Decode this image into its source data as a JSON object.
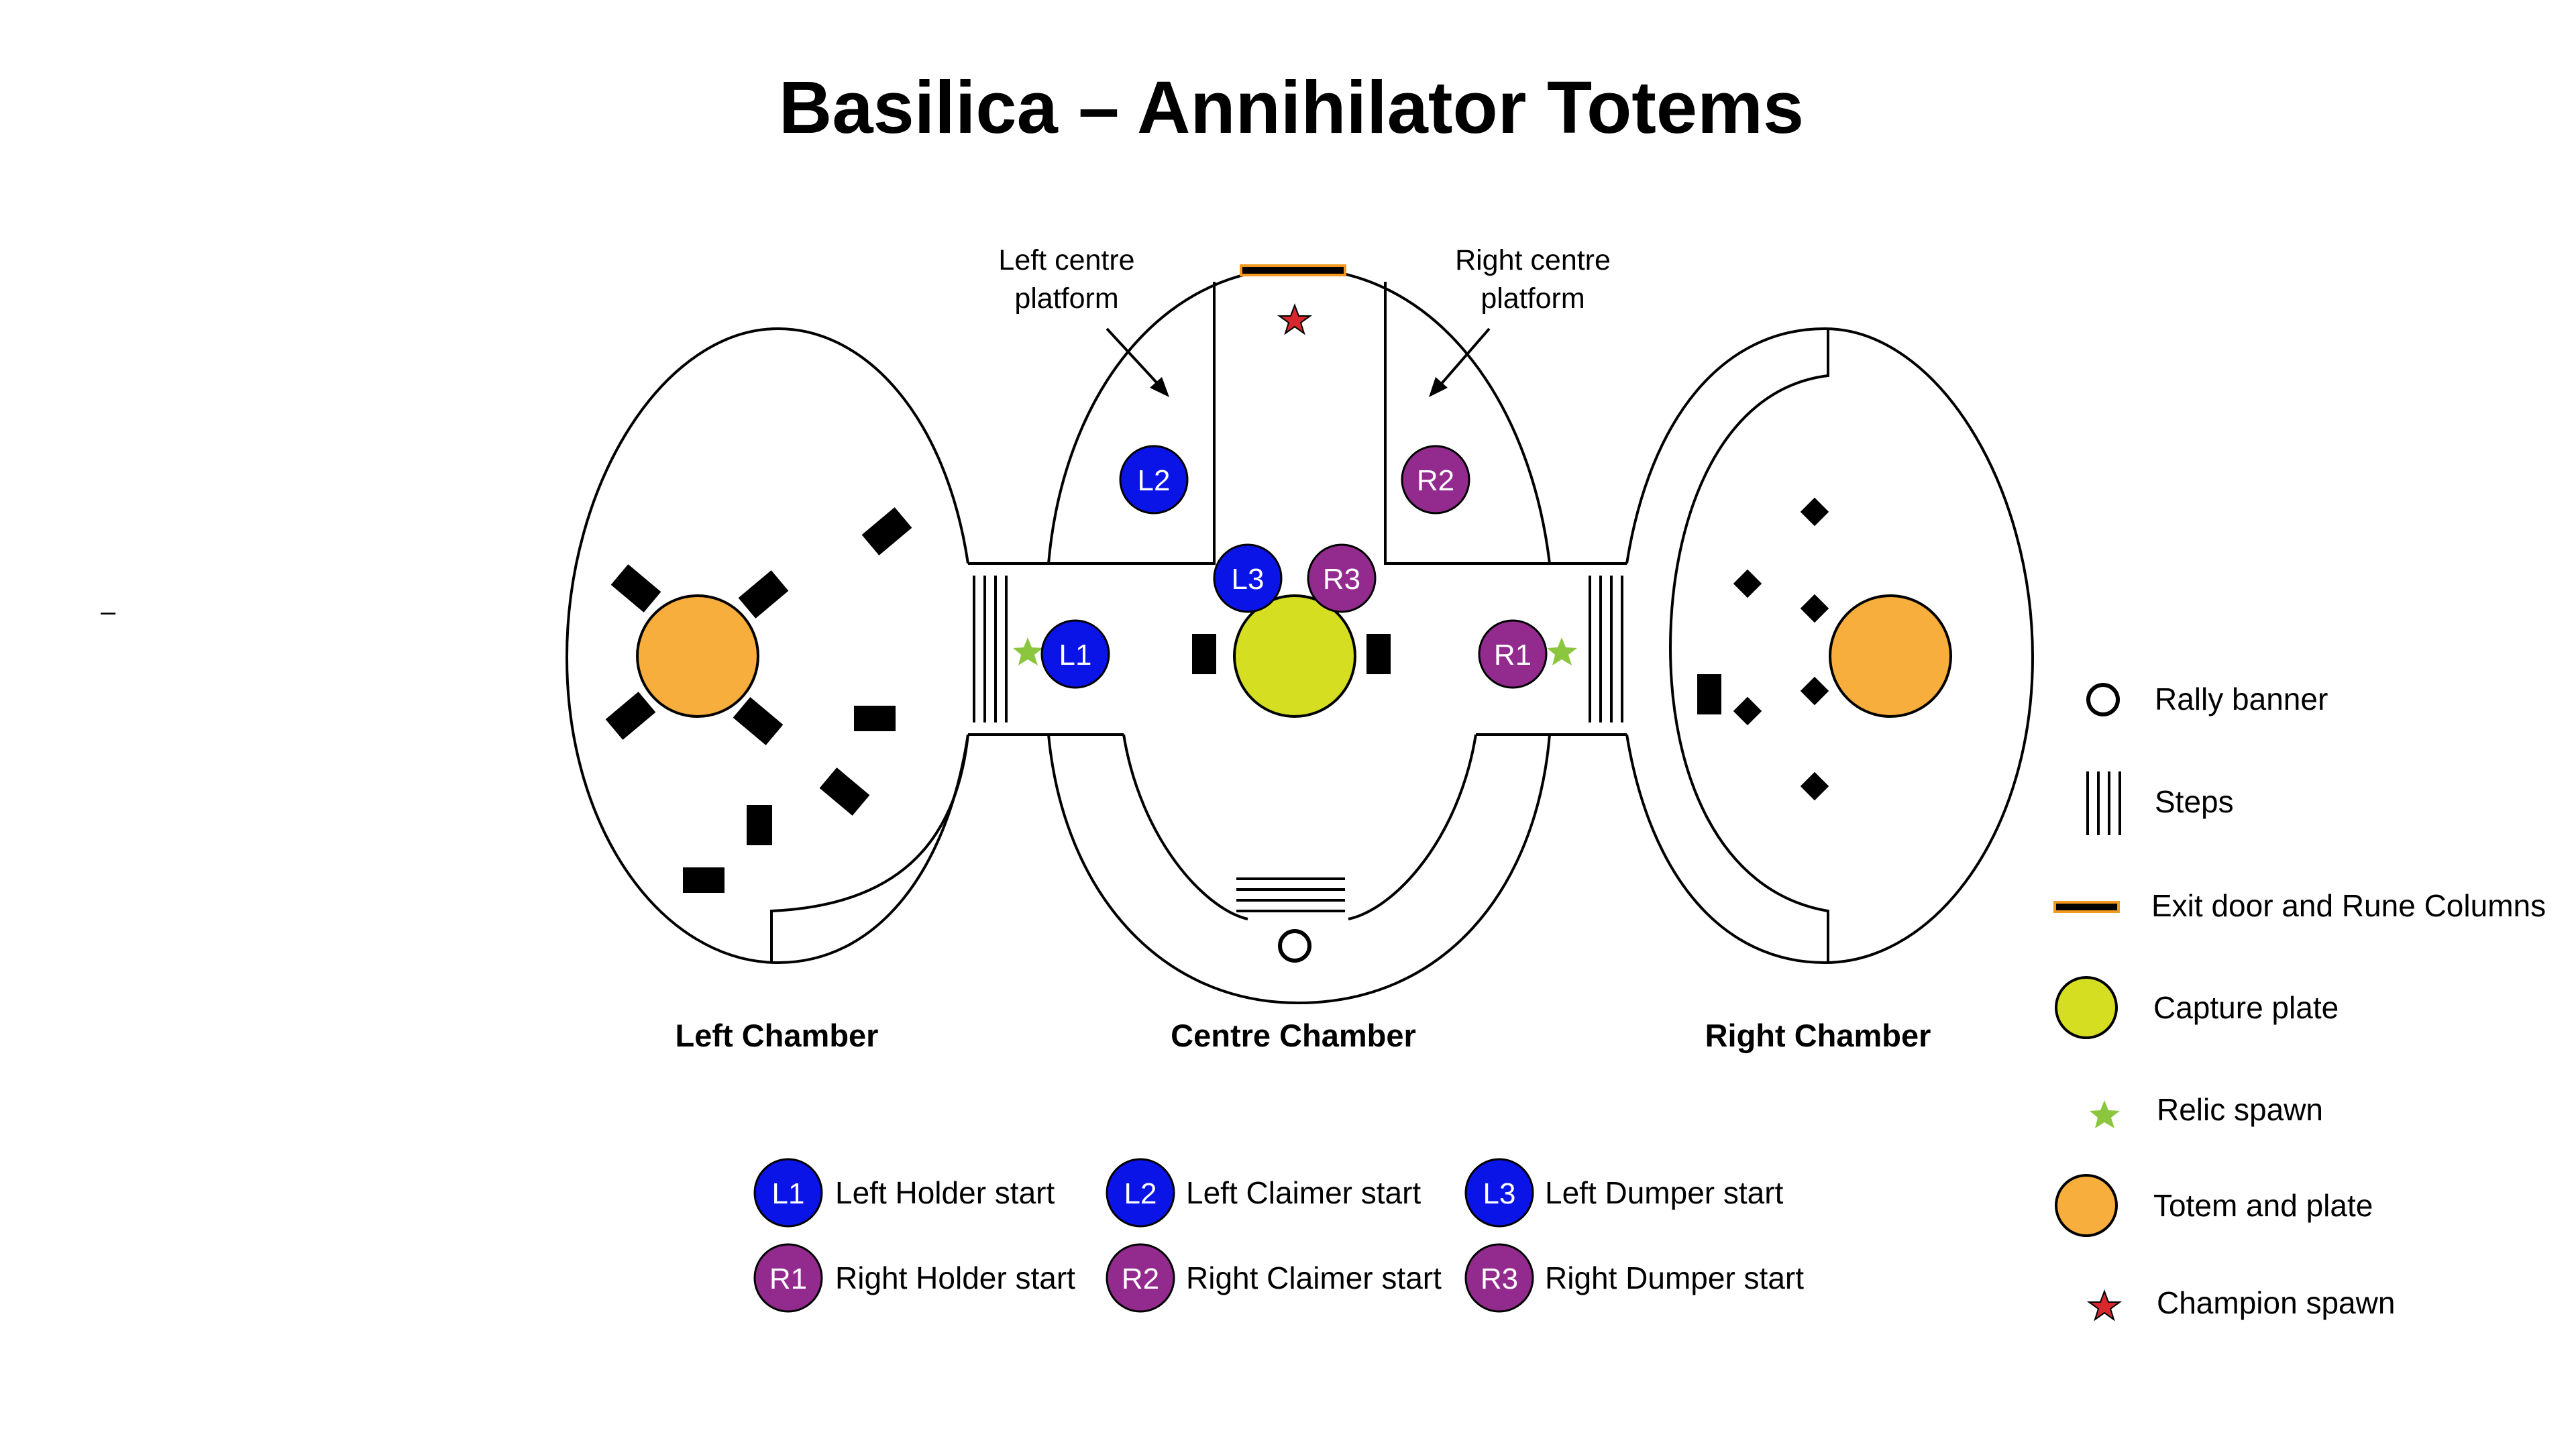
{
  "title": "Basilica – Annihilator Totems",
  "stray_mark": "–",
  "callouts": {
    "left_centre_line1": "Left centre",
    "left_centre_line2": "platform",
    "right_centre_line1": "Right centre",
    "right_centre_line2": "platform"
  },
  "chambers": {
    "left": "Left Chamber",
    "centre": "Centre Chamber",
    "right": "Right Chamber"
  },
  "starts": [
    {
      "id": "L1",
      "label": "Left Holder start",
      "team": "left"
    },
    {
      "id": "L2",
      "label": "Left Claimer start",
      "team": "left"
    },
    {
      "id": "L3",
      "label": "Left Dumper start",
      "team": "left"
    },
    {
      "id": "R1",
      "label": "Right Holder start",
      "team": "right"
    },
    {
      "id": "R2",
      "label": "Right Claimer start",
      "team": "right"
    },
    {
      "id": "R3",
      "label": "Right Dumper start",
      "team": "right"
    }
  ],
  "legend": {
    "rally_banner": "Rally banner",
    "steps": "Steps",
    "exit_door": "Exit door and Rune Columns",
    "capture_plate": "Capture plate",
    "relic_spawn": "Relic spawn",
    "totem_plate": "Totem and plate",
    "champion_spawn": "Champion spawn"
  },
  "colors": {
    "left_team": "#0a14e6",
    "right_team": "#932b8f",
    "capture_plate": "#d6de22",
    "totem": "#f8ae3d",
    "relic": "#8cc63f",
    "champion": "#d7282d",
    "exit_door": "#f29a1f",
    "outline": "#000000"
  }
}
